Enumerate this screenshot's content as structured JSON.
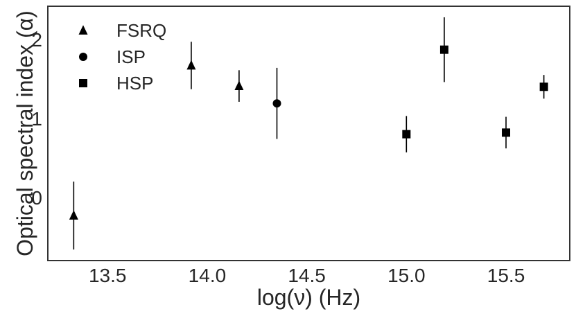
{
  "chart_data": {
    "type": "scatter",
    "xlabel": "log(ν) (Hz)",
    "ylabel": "Optical spectral index (α)",
    "xlim": [
      13.2,
      15.82
    ],
    "ylim": [
      -0.8,
      2.42
    ],
    "x_ticks": [
      13.5,
      14.0,
      14.5,
      15.0,
      15.5
    ],
    "x_tick_labels": [
      "13.5",
      "14.0",
      "14.5",
      "15.0",
      "15.5"
    ],
    "y_ticks": [
      0,
      1,
      2
    ],
    "y_tick_labels": [
      "0",
      "1",
      "2"
    ],
    "grid": false,
    "legend_position": "top-left",
    "series": [
      {
        "name": "FSRQ",
        "marker": "triangle",
        "color": "#000000",
        "points": [
          {
            "x": 13.33,
            "y": -0.23,
            "err_low": 0.43,
            "err_high": 0.43
          },
          {
            "x": 13.92,
            "y": 1.67,
            "err_low": 0.3,
            "err_high": 0.3
          },
          {
            "x": 14.16,
            "y": 1.41,
            "err_low": 0.2,
            "err_high": 0.2
          }
        ]
      },
      {
        "name": "ISP",
        "marker": "circle",
        "color": "#000000",
        "points": [
          {
            "x": 14.35,
            "y": 1.19,
            "err_low": 0.45,
            "err_high": 0.45
          }
        ]
      },
      {
        "name": "HSP",
        "marker": "square",
        "color": "#000000",
        "points": [
          {
            "x": 15.0,
            "y": 0.8,
            "err_low": 0.23,
            "err_high": 0.23
          },
          {
            "x": 15.19,
            "y": 1.87,
            "err_low": 0.41,
            "err_high": 0.41
          },
          {
            "x": 15.5,
            "y": 0.82,
            "err_low": 0.2,
            "err_high": 0.2
          },
          {
            "x": 15.69,
            "y": 1.4,
            "err_low": 0.15,
            "err_high": 0.15
          }
        ]
      }
    ]
  }
}
